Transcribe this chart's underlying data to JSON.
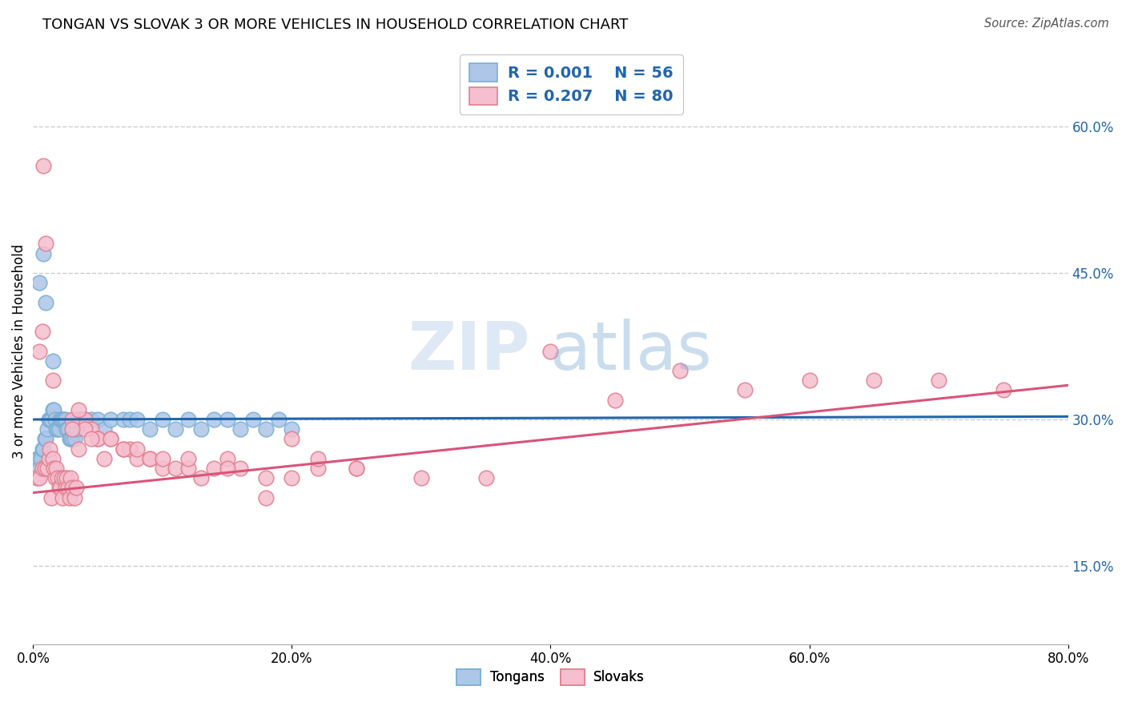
{
  "title": "TONGAN VS SLOVAK 3 OR MORE VEHICLES IN HOUSEHOLD CORRELATION CHART",
  "source": "Source: ZipAtlas.com",
  "ylabel": "3 or more Vehicles in Household",
  "tongan_color": "#aec6e8",
  "tongan_edge": "#7aafd4",
  "slovak_color": "#f5bfcf",
  "slovak_edge": "#e08090",
  "tongan_line_color": "#2166ac",
  "slovak_line_color": "#d9547a",
  "legend_r_tongan": "R = 0.001",
  "legend_n_tongan": "N = 56",
  "legend_r_slovak": "R = 0.207",
  "legend_n_slovak": "N = 80",
  "watermark_zip": "ZIP",
  "watermark_atlas": "atlas",
  "tongan_x": [
    0.3,
    0.4,
    0.5,
    0.6,
    0.7,
    0.8,
    0.9,
    1.0,
    1.1,
    1.2,
    1.3,
    1.4,
    1.5,
    1.6,
    1.7,
    1.8,
    1.9,
    2.0,
    2.1,
    2.2,
    2.3,
    2.4,
    2.5,
    2.6,
    2.7,
    2.8,
    2.9,
    3.0,
    3.2,
    3.3,
    3.5,
    3.7,
    4.0,
    4.5,
    5.0,
    5.5,
    6.0,
    7.0,
    7.5,
    8.0,
    9.0,
    10.0,
    11.0,
    12.0,
    13.0,
    14.0,
    15.0,
    16.0,
    17.0,
    18.0,
    19.0,
    20.0,
    0.5,
    0.8,
    1.0,
    1.5
  ],
  "tongan_y": [
    26,
    26,
    25,
    26,
    27,
    27,
    28,
    28,
    29,
    30,
    30,
    30,
    31,
    31,
    30,
    29,
    29,
    29,
    30,
    30,
    30,
    30,
    30,
    29,
    29,
    28,
    28,
    28,
    28,
    29,
    30,
    30,
    30,
    30,
    30,
    29,
    30,
    30,
    30,
    30,
    29,
    30,
    29,
    30,
    29,
    30,
    30,
    29,
    30,
    29,
    30,
    29,
    44,
    47,
    42,
    36
  ],
  "slovak_x": [
    0.3,
    0.5,
    0.7,
    0.8,
    0.9,
    1.0,
    1.1,
    1.2,
    1.3,
    1.4,
    1.5,
    1.6,
    1.7,
    1.8,
    1.9,
    2.0,
    2.1,
    2.2,
    2.3,
    2.4,
    2.5,
    2.6,
    2.7,
    2.8,
    2.9,
    3.0,
    3.2,
    3.3,
    3.5,
    3.7,
    4.0,
    4.5,
    5.0,
    5.5,
    6.0,
    7.0,
    7.5,
    8.0,
    9.0,
    10.0,
    11.0,
    12.0,
    13.0,
    14.0,
    15.0,
    16.0,
    18.0,
    20.0,
    22.0,
    25.0,
    30.0,
    35.0,
    40.0,
    45.0,
    50.0,
    55.0,
    60.0,
    65.0,
    70.0,
    75.0,
    3.0,
    3.5,
    4.0,
    5.0,
    6.0,
    7.0,
    8.0,
    9.0,
    10.0,
    12.0,
    15.0,
    18.0,
    20.0,
    22.0,
    25.0,
    0.5,
    0.7,
    1.5,
    3.0,
    4.5
  ],
  "slovak_y": [
    24,
    24,
    25,
    56,
    25,
    48,
    25,
    26,
    27,
    22,
    26,
    25,
    24,
    25,
    24,
    23,
    23,
    24,
    22,
    24,
    23,
    24,
    23,
    22,
    24,
    23,
    22,
    23,
    27,
    30,
    30,
    29,
    28,
    26,
    28,
    27,
    27,
    26,
    26,
    25,
    25,
    25,
    24,
    25,
    26,
    25,
    22,
    24,
    25,
    25,
    24,
    24,
    37,
    32,
    35,
    33,
    34,
    34,
    34,
    33,
    30,
    31,
    29,
    28,
    28,
    27,
    27,
    26,
    26,
    26,
    25,
    24,
    28,
    26,
    25,
    37,
    39,
    34,
    29,
    28
  ],
  "xlim": [
    0,
    80
  ],
  "ylim": [
    7,
    67
  ],
  "xtick_vals": [
    0,
    20,
    40,
    60,
    80
  ],
  "xtick_labels": [
    "0.0%",
    "20.0%",
    "40.0%",
    "60.0%",
    "80.0%"
  ],
  "ytick_vals": [
    15,
    30,
    45,
    60
  ],
  "ytick_labels": [
    "15.0%",
    "30.0%",
    "45.0%",
    "60.0%"
  ]
}
